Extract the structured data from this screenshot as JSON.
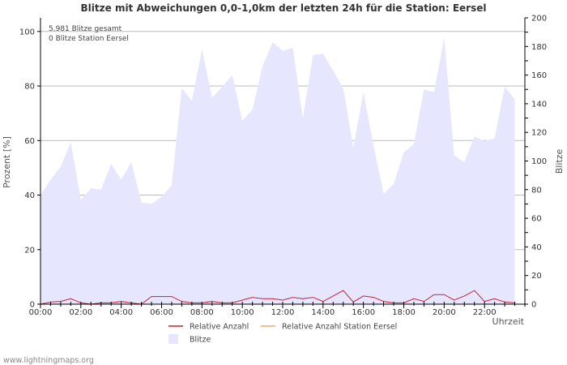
{
  "chart_data": {
    "type": "area",
    "title": "Blitze mit Abweichungen 0,0-1,0km der letzten 24h für die Station: Eersel",
    "xlabel": "Uhrzeit",
    "ylabel_left": "Prozent   [%]",
    "ylabel_right": "Blitze",
    "ylim_left": [
      0,
      105
    ],
    "ylim_right": [
      0,
      200
    ],
    "xlim_hours": [
      0,
      24
    ],
    "x_tick_labels": [
      "00:00",
      "02:00",
      "04:00",
      "06:00",
      "08:00",
      "10:00",
      "12:00",
      "14:00",
      "16:00",
      "18:00",
      "20:00",
      "22:00"
    ],
    "y_left_ticks": [
      "0",
      "20",
      "40",
      "60",
      "80",
      "100"
    ],
    "y_right_ticks": [
      "0",
      "10",
      "20",
      "30",
      "40",
      "50",
      "60",
      "70",
      "80",
      "90",
      "100",
      "110",
      "120",
      "130",
      "140",
      "150",
      "160",
      "170",
      "180",
      "190",
      "200"
    ],
    "info_lines": [
      "5.981 Blitze gesamt",
      "0 Blitze Station Eersel"
    ],
    "x_hours": [
      0,
      0.5,
      1,
      1.5,
      2,
      2.5,
      3,
      3.5,
      4,
      4.5,
      5,
      5.5,
      6,
      6.5,
      7,
      7.5,
      8,
      8.5,
      9,
      9.5,
      10,
      10.5,
      11,
      11.5,
      12,
      12.5,
      13,
      13.5,
      14,
      14.5,
      15,
      15.5,
      16,
      16.5,
      17,
      17.5,
      18,
      18.5,
      19,
      19.5,
      20,
      20.5,
      21,
      21.5,
      22,
      22.5,
      23,
      23.5
    ],
    "series": [
      {
        "name": "Blitze",
        "axis": "right",
        "color": "#e6e6ff",
        "values": [
          76,
          87,
          96,
          113,
          73,
          81,
          80,
          98,
          87,
          99,
          71,
          70,
          75,
          83,
          151,
          142,
          178,
          144,
          152,
          160,
          128,
          136,
          166,
          183,
          177,
          179,
          130,
          174,
          175,
          163,
          151,
          109,
          148,
          111,
          77,
          84,
          106,
          112,
          150,
          148,
          186,
          104,
          99,
          117,
          114,
          116,
          152,
          143
        ]
      },
      {
        "name": "Relative Anzahl",
        "axis": "left",
        "color": "#cc2233",
        "values": [
          0,
          0.8,
          1,
          2,
          0.5,
          0,
          0.5,
          0.5,
          1,
          0.5,
          0,
          2.8,
          2.8,
          2.8,
          1,
          0.5,
          0.5,
          1,
          0.5,
          0.5,
          1.5,
          2.5,
          2,
          2,
          1.5,
          2.5,
          2,
          2.5,
          1,
          3,
          5,
          0.8,
          3,
          2.5,
          1,
          0.5,
          0.5,
          2,
          1,
          3.5,
          3.5,
          1.5,
          3,
          5,
          1,
          2,
          0.8,
          0.5
        ]
      },
      {
        "name": "Relative Anzahl Station Eersel",
        "axis": "left",
        "color": "#f0a878",
        "values": [
          0,
          0,
          0,
          0,
          0,
          0,
          0,
          0,
          0,
          0,
          0,
          0,
          0,
          0,
          0,
          0,
          0,
          0,
          0,
          0,
          0,
          0,
          0,
          0,
          0,
          0,
          0,
          0,
          0,
          0,
          0,
          0,
          0,
          0,
          0,
          0,
          0,
          0,
          0,
          0,
          0,
          0,
          0,
          0,
          0,
          0,
          0,
          0
        ]
      }
    ],
    "legend": {
      "items": [
        {
          "label": "Relative Anzahl",
          "color": "#cc2233",
          "kind": "line"
        },
        {
          "label": "Relative Anzahl Station Eersel",
          "color": "#f0a878",
          "kind": "line"
        },
        {
          "label": "Blitze",
          "color": "#e6e6ff",
          "kind": "area"
        }
      ],
      "placement": "bottom"
    },
    "colors": {
      "grid": "#bbbbbb",
      "axis": "#000000",
      "text": "#333333"
    }
  },
  "footer": {
    "credit": "www.lightningmaps.org"
  }
}
